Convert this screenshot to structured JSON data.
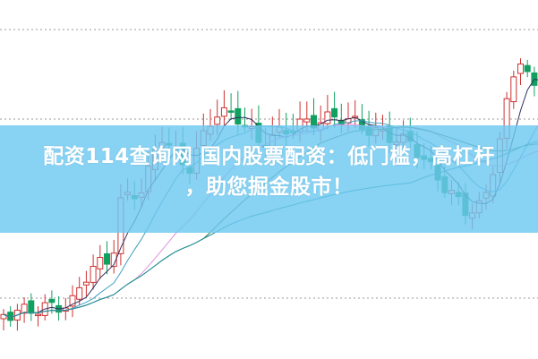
{
  "headline": {
    "line1": "配资114查询网 国内股票配资：低门槛，高杠杆",
    "line2": "，助您掘金股市！"
  },
  "colors": {
    "up": "#d03030",
    "down": "#10a060",
    "banner": "#6ec8f0",
    "ma_lines": [
      "#303060",
      "#40a0c0",
      "#e090e0",
      "#308040",
      "#2090a0"
    ]
  }
}
